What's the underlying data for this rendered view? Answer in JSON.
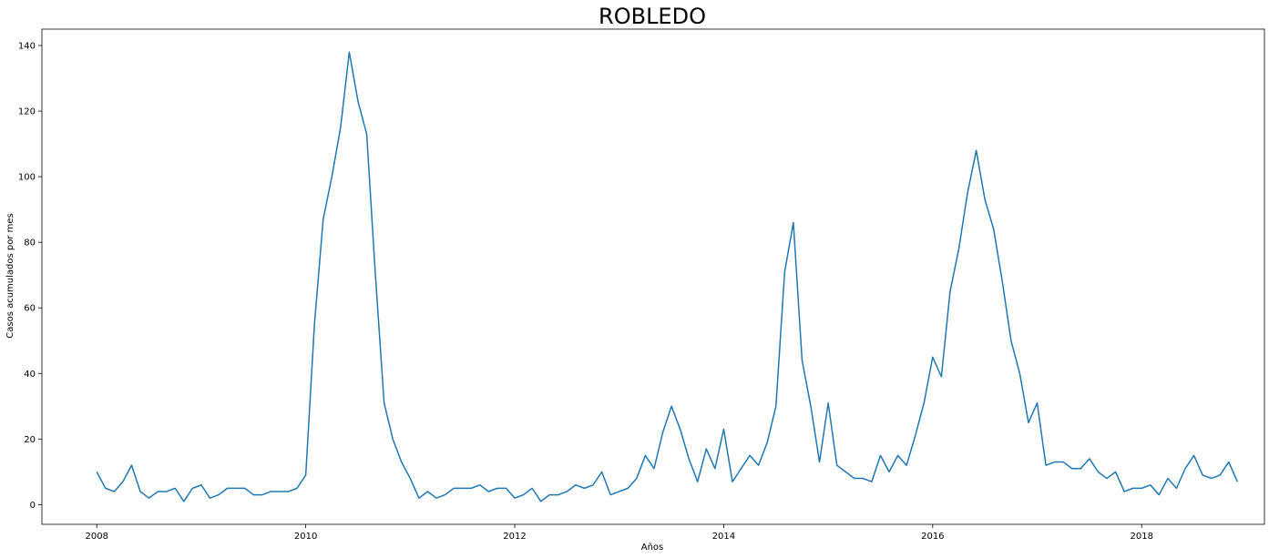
{
  "chart_data": {
    "type": "line",
    "title": "ROBLEDO",
    "xlabel": "Años",
    "ylabel": "Casos acumulados por mes",
    "x_start": "2008-01",
    "x_interval": "month",
    "xlim": [
      "2007-07",
      "2019-03"
    ],
    "ylim": [
      -6,
      145
    ],
    "xticks": [
      {
        "label": "2008",
        "value": "2008-01"
      },
      {
        "label": "2010",
        "value": "2010-01"
      },
      {
        "label": "2012",
        "value": "2012-01"
      },
      {
        "label": "2014",
        "value": "2014-01"
      },
      {
        "label": "2016",
        "value": "2016-01"
      },
      {
        "label": "2018",
        "value": "2018-01"
      }
    ],
    "yticks": [
      {
        "label": "0",
        "value": 0
      },
      {
        "label": "20",
        "value": 20
      },
      {
        "label": "40",
        "value": 40
      },
      {
        "label": "60",
        "value": 60
      },
      {
        "label": "80",
        "value": 80
      },
      {
        "label": "100",
        "value": 100
      },
      {
        "label": "120",
        "value": 120
      },
      {
        "label": "140",
        "value": 140
      }
    ],
    "grid": false,
    "legend": "none",
    "line_color": "#1f77b4",
    "values": [
      10,
      5,
      4,
      7,
      12,
      4,
      2,
      4,
      4,
      5,
      1,
      5,
      6,
      2,
      3,
      5,
      5,
      5,
      3,
      3,
      4,
      4,
      4,
      5,
      9,
      55,
      87,
      100,
      115,
      138,
      123,
      113,
      70,
      31,
      20,
      13,
      8,
      2,
      4,
      2,
      3,
      5,
      5,
      5,
      6,
      4,
      5,
      5,
      2,
      3,
      5,
      1,
      3,
      3,
      4,
      6,
      5,
      6,
      10,
      3,
      4,
      5,
      8,
      15,
      11,
      22,
      30,
      23,
      14,
      7,
      17,
      11,
      23,
      7,
      11,
      15,
      12,
      19,
      30,
      71,
      86,
      44,
      30,
      13,
      31,
      12,
      10,
      8,
      8,
      7,
      15,
      10,
      15,
      12,
      21,
      31,
      45,
      39,
      65,
      78,
      95,
      108,
      93,
      84,
      68,
      50,
      40,
      25,
      31,
      12,
      13,
      13,
      11,
      11,
      14,
      10,
      8,
      10,
      4,
      5,
      5,
      6,
      3,
      8,
      5,
      11,
      15,
      9,
      8,
      9,
      13,
      7
    ]
  }
}
